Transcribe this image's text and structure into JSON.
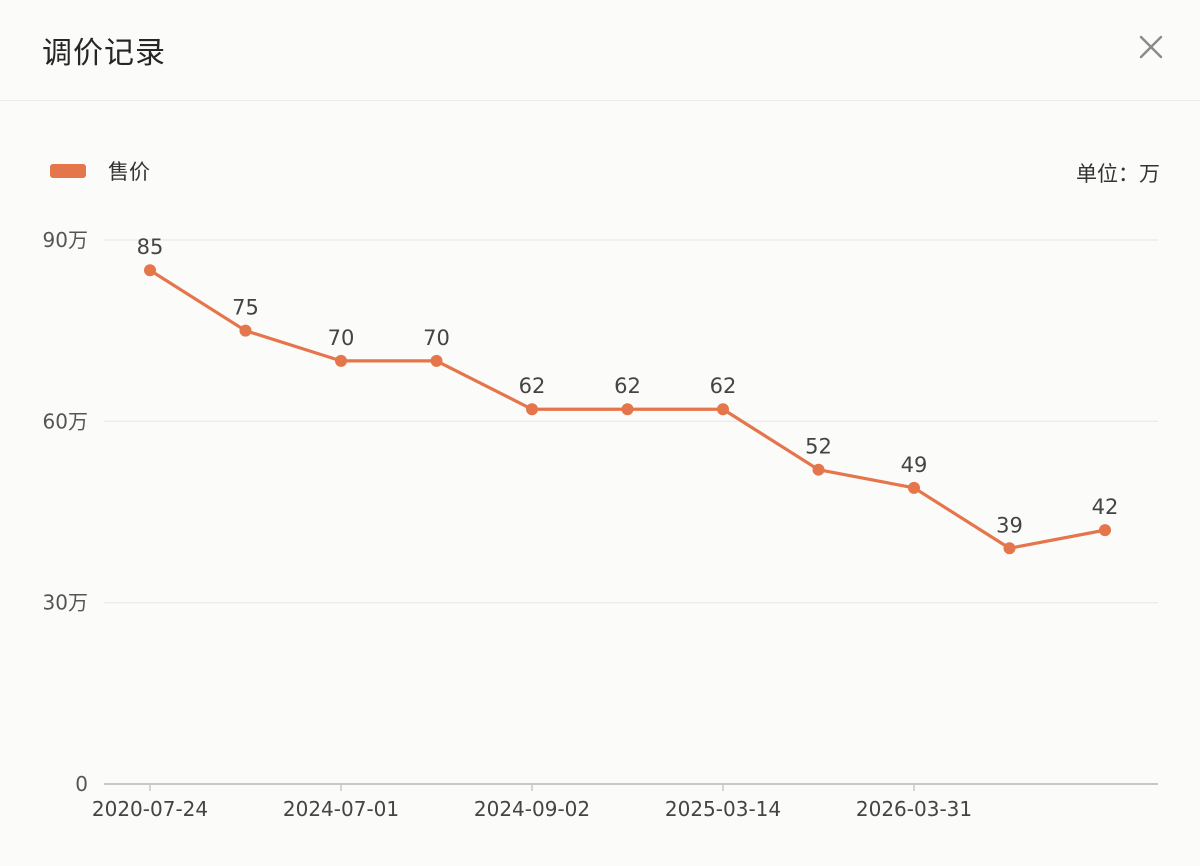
{
  "dialog": {
    "title": "调价记录",
    "close_icon": "close-icon"
  },
  "legend": {
    "label": "售价",
    "unit_label": "单位：万"
  },
  "colors": {
    "accent": "#e5754a",
    "grid": "#e9e9e9",
    "axis": "#c8c8c8"
  },
  "chart_data": {
    "type": "line",
    "x": [
      "2020-07-24",
      "",
      "2024-07-01",
      "",
      "2024-09-02",
      "",
      "2025-03-14",
      "",
      "2026-03-31",
      "",
      ""
    ],
    "series": [
      {
        "name": "售价",
        "values": [
          85,
          75,
          70,
          70,
          62,
          62,
          62,
          52,
          49,
          39,
          42
        ]
      }
    ],
    "y_ticks": [
      {
        "value": 0,
        "label": "0"
      },
      {
        "value": 30,
        "label": "30万"
      },
      {
        "value": 60,
        "label": "60万"
      },
      {
        "value": 90,
        "label": "90万"
      }
    ],
    "ylim": [
      0,
      90
    ],
    "grid": true,
    "data_labels": true,
    "legend_position": "top-left"
  }
}
